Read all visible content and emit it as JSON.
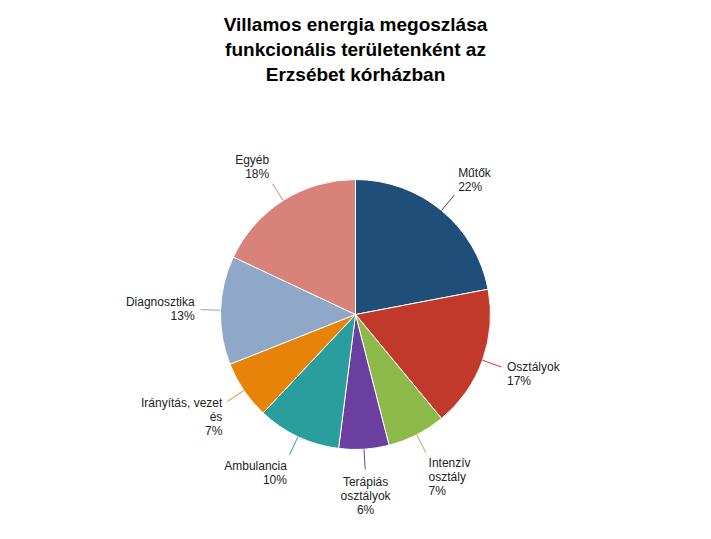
{
  "chart_data": {
    "type": "pie",
    "title": "Villamos energia megoszlása\nfunkcionális területenként az\nErzsébet kórházban",
    "categories": [
      "Műtők\n22%",
      "Osztályok\n17%",
      "Intenzív\nosztály\n7%",
      "Terápiás\nosztályok\n6%",
      "Ambulancia\n10%",
      "Irányítás, vezet\nés\n7%",
      "Diagnosztika\n13%",
      "Egyéb\n18%"
    ],
    "values": [
      22,
      17,
      7,
      6,
      10,
      7,
      13,
      18
    ],
    "colors": [
      "#1f4e79",
      "#c0392b",
      "#8db84a",
      "#6b3fa0",
      "#2a9d9d",
      "#e8830a",
      "#8fa8c8",
      "#d9827a"
    ]
  }
}
